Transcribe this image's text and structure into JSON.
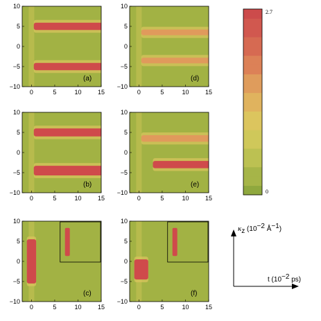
{
  "chart_data": [
    {
      "type": "heatmap",
      "panel_label": "(a)",
      "xlim": [
        -2,
        15
      ],
      "ylim": [
        -10,
        10
      ],
      "xticks": [
        0,
        5,
        10,
        15
      ],
      "yticks": [
        10,
        5,
        0,
        -5,
        -10
      ],
      "bands": [
        {
          "center": 5,
          "width": 0.9,
          "intensity": 1.0,
          "t_start": 0.5
        },
        {
          "center": -5,
          "width": 0.9,
          "intensity": 1.0,
          "t_start": 0.5
        }
      ]
    },
    {
      "type": "heatmap",
      "panel_label": "(d)",
      "xlim": [
        -2,
        15
      ],
      "ylim": [
        -10,
        10
      ],
      "xticks": [
        0,
        5,
        10,
        15
      ],
      "yticks": [
        10,
        5,
        0,
        -5,
        -10
      ],
      "bands": [
        {
          "center": 3.5,
          "width": 0.7,
          "intensity": 0.5,
          "t_start": 0.5
        },
        {
          "center": -3.5,
          "width": 0.7,
          "intensity": 0.5,
          "t_start": 0.5
        }
      ]
    },
    {
      "type": "heatmap",
      "panel_label": "(b)",
      "xlim": [
        -2,
        15
      ],
      "ylim": [
        -10,
        10
      ],
      "xticks": [
        0,
        5,
        10,
        15
      ],
      "yticks": [
        10,
        5,
        0,
        -5,
        -10
      ],
      "bands": [
        {
          "center": 5,
          "width": 1.0,
          "intensity": 1.0,
          "t_start": 0.5
        },
        {
          "center": -4.5,
          "width": 1.2,
          "intensity": 1.0,
          "t_start": 0.5
        }
      ]
    },
    {
      "type": "heatmap",
      "panel_label": "(e)",
      "xlim": [
        -2,
        15
      ],
      "ylim": [
        -10,
        10
      ],
      "xticks": [
        0,
        5,
        10,
        15
      ],
      "yticks": [
        10,
        5,
        0,
        -5,
        -10
      ],
      "bands": [
        {
          "center": 3.5,
          "width": 0.8,
          "intensity": 0.55,
          "t_start": 0.5
        },
        {
          "center": -3,
          "width": 0.9,
          "intensity": 0.85,
          "t_start": 3
        }
      ]
    },
    {
      "type": "heatmap",
      "panel_label": "(c)",
      "xlim": [
        -2,
        15
      ],
      "ylim": [
        -10,
        10
      ],
      "xticks": [
        0,
        5,
        10,
        15
      ],
      "yticks": [
        10,
        5,
        0,
        -5,
        -10
      ],
      "bands": [
        {
          "center": 0,
          "width": 5.5,
          "intensity": 1.0,
          "t_start": -1,
          "t_end": 1
        }
      ],
      "has_inset": true
    },
    {
      "type": "heatmap",
      "panel_label": "(f)",
      "xlim": [
        -2,
        15
      ],
      "ylim": [
        -10,
        10
      ],
      "xticks": [
        0,
        5,
        10,
        15
      ],
      "yticks": [
        10,
        5,
        0,
        -5,
        -10
      ],
      "bands": [
        {
          "center": -2,
          "width": 2.5,
          "intensity": 0.95,
          "t_start": -1,
          "t_end": 2
        }
      ],
      "has_inset": true
    }
  ],
  "colorbar": {
    "max_label": "2.7",
    "min_label": "0",
    "colors": [
      "#8fa83e",
      "#a6b548",
      "#bcc152",
      "#cfc85a",
      "#dcc55e",
      "#e0b35e",
      "#df9c5c",
      "#dc8157",
      "#d66a52",
      "#d1584f",
      "#cc4b4b"
    ]
  },
  "axes_annotation": {
    "y_label": "κ",
    "y_sub": "z",
    "y_units": " (10",
    "y_exp": "−2",
    "y_units2": " Å",
    "y_exp2": "−1",
    "y_close": ")",
    "x_label": "t (10",
    "x_exp": "−2",
    "x_close": " ps)"
  }
}
